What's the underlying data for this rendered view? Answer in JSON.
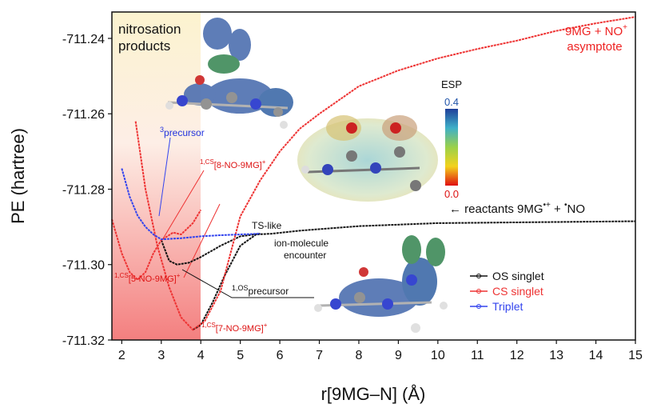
{
  "chart_data": {
    "type": "line",
    "xlabel": "r[9MG–N] (Å)",
    "ylabel": "PE (hartree)",
    "xlim": [
      1.75,
      15
    ],
    "xticks": [
      2,
      3,
      4,
      5,
      6,
      7,
      8,
      9,
      10,
      11,
      12,
      13,
      14,
      15
    ],
    "ylim": [
      -711.32,
      -711.233
    ],
    "yticks": [
      -711.32,
      {
        "value": -711.3,
        "label": "-711.30"
      },
      -711.28,
      -711.26,
      -711.24
    ],
    "legend": "lower right",
    "series": [
      {
        "name": "OS singlet",
        "color": "#111111",
        "x": [
          3.0,
          3.2,
          3.4,
          3.7,
          4.0,
          4.5,
          5.0,
          5.5,
          null,
          3.8,
          4.0,
          4.3,
          4.6,
          5.0,
          5.4,
          5.8,
          6.5,
          8,
          10,
          12,
          15
        ],
        "values": [
          -711.2935,
          -711.299,
          -711.3,
          -711.2995,
          -711.298,
          -711.295,
          -711.2925,
          -711.2918,
          null,
          -711.3173,
          -711.316,
          -711.31,
          -711.303,
          -711.295,
          -711.292,
          -711.2918,
          -711.291,
          -711.2898,
          -711.289,
          -711.2888,
          -711.2885
        ]
      },
      {
        "name": "CS singlet",
        "color": "#ee3333",
        "x": [
          1.75,
          2.0,
          2.2,
          2.4,
          2.6,
          2.8,
          3.0,
          3.3,
          3.5,
          3.8,
          4.0,
          null,
          2.35,
          2.6,
          2.9,
          3.2,
          3.5,
          3.8,
          4.1,
          4.5,
          5.0,
          5.5,
          6.0,
          6.5,
          7,
          8,
          9,
          10,
          11,
          12,
          13,
          14,
          15
        ],
        "values": [
          -711.288,
          -711.297,
          -711.302,
          -711.304,
          -711.302,
          -711.297,
          -711.2935,
          -711.2915,
          -711.292,
          -711.289,
          -711.2855,
          null,
          -711.262,
          -711.28,
          -711.295,
          -711.306,
          -711.314,
          -711.3173,
          -711.315,
          -711.307,
          -711.2872,
          -711.2777,
          -711.27,
          -711.264,
          -711.26,
          -711.2527,
          -711.2485,
          -711.2453,
          -711.2428,
          -711.2406,
          -711.238,
          -711.236,
          -711.2343
        ]
      },
      {
        "name": "Triplet",
        "color": "#3344ee",
        "x": [
          2.0,
          2.2,
          2.4,
          2.6,
          2.8,
          3.0,
          3.5,
          4.0,
          4.5,
          5.0,
          5.5
        ],
        "values": [
          -711.2745,
          -711.282,
          -711.287,
          -711.29,
          -711.292,
          -711.2933,
          -711.293,
          -711.2925,
          -711.2922,
          -711.292,
          -711.2918
        ]
      }
    ],
    "annotations": {
      "nitrosation": [
        "nitrosation",
        "products"
      ],
      "asymptote": [
        "9MG + NO",
        "+",
        "asymptote"
      ],
      "precursor3": [
        "3",
        "precursor"
      ],
      "cs8": [
        "1,CS",
        "[8-NO-9MG]",
        "+"
      ],
      "cs5": [
        "1,CS",
        "[5-NO-9MG]",
        "+"
      ],
      "cs7": [
        "1,CS",
        "[7-NO-9MG]",
        "+"
      ],
      "os_precursor": [
        "1,OS",
        "precursor"
      ],
      "ts": "TS-like",
      "ion": [
        "ion-molecule",
        "encounter"
      ],
      "reactants": [
        "← reactants 9MG",
        "•+",
        " + ",
        "•",
        "NO"
      ]
    },
    "esp_scale": {
      "title": "ESP",
      "ticks": [
        {
          "value": 0,
          "label": "0.0"
        },
        0.4
      ]
    }
  }
}
